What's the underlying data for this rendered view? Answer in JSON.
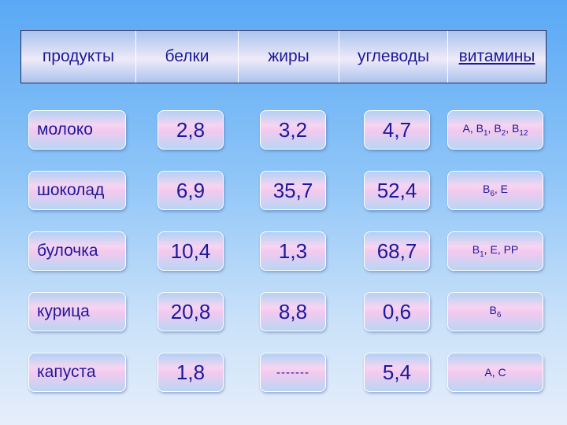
{
  "headers": [
    "продукты",
    "белки",
    "жиры",
    "углеводы",
    "витамины"
  ],
  "rows": [
    {
      "name": "молоко",
      "protein": "2,8",
      "fat": "3,2",
      "carbs": "4,7",
      "vitamins": [
        [
          "A",
          ""
        ],
        [
          "B",
          "1"
        ],
        [
          "B",
          "2"
        ],
        [
          "B",
          "12"
        ]
      ]
    },
    {
      "name": "шоколад",
      "protein": "6,9",
      "fat": "35,7",
      "carbs": "52,4",
      "vitamins": [
        [
          "B",
          "6"
        ],
        [
          "E",
          ""
        ]
      ]
    },
    {
      "name": "булочка",
      "protein": "10,4",
      "fat": "1,3",
      "carbs": "68,7",
      "vitamins": [
        [
          "B",
          "1"
        ],
        [
          "E",
          ""
        ],
        [
          "PP",
          ""
        ]
      ]
    },
    {
      "name": "курица",
      "protein": "20,8",
      "fat": "8,8",
      "carbs": "0,6",
      "vitamins": [
        [
          "B",
          "6"
        ]
      ]
    },
    {
      "name": "капуста",
      "protein": "1,8",
      "fat": "-------",
      "carbs": "5,4",
      "vitamins": [
        [
          "A",
          ""
        ],
        [
          "C",
          ""
        ]
      ]
    }
  ]
}
